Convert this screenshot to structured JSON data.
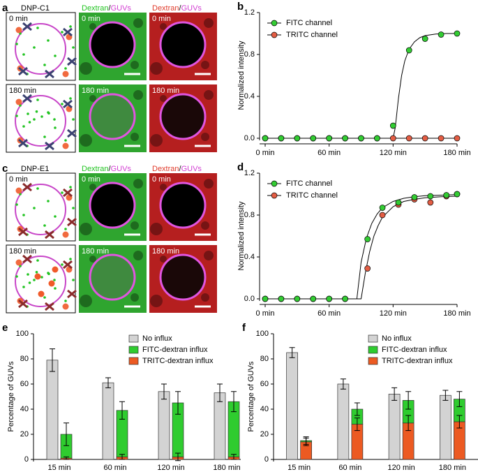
{
  "panels": [
    {
      "label": "a",
      "title": "DNP-C1",
      "headers": [
        [
          "Dextran",
          "/",
          "GUVs"
        ],
        [
          "Dextran",
          "/",
          "GUVs"
        ]
      ],
      "times": [
        "0 min",
        "180 min"
      ]
    },
    {
      "label": "c",
      "title": "DNP-E1",
      "headers": [
        [
          "Dextran",
          "/",
          "GUVs"
        ],
        [
          "Dextran",
          "/",
          "GUVs"
        ]
      ],
      "times": [
        "0 min",
        "180 min"
      ]
    }
  ],
  "chart_data": [
    {
      "type": "line",
      "panel_label": "b",
      "y_label": "Normalized intensity",
      "legend": "top-left",
      "x": [
        0,
        15,
        30,
        45,
        60,
        75,
        90,
        105,
        120,
        135,
        150,
        165,
        180
      ],
      "xlim": [
        0,
        180
      ],
      "xticks": [
        {
          "value": 0,
          "label": "0 min"
        },
        {
          "value": 60,
          "label": "60 min"
        },
        {
          "value": 120,
          "label": "120 min"
        },
        {
          "value": 180,
          "label": "180 min"
        }
      ],
      "ylim": [
        0,
        1.2
      ],
      "yticks": [
        {
          "value": 0,
          "label": "0.0"
        },
        0.4,
        0.8,
        1.2
      ],
      "series": [
        {
          "name": "FITC channel",
          "color": "#33cc33",
          "values": [
            0,
            0,
            0,
            0,
            0,
            0,
            0,
            0,
            0.12,
            0.84,
            0.95,
            0.99,
            1.0
          ],
          "fit": {
            "x": [
              0,
              120,
              122,
              125,
              128,
              131,
              135,
              140,
              145,
              150,
              160,
              170,
              180
            ],
            "values": [
              0,
              0,
              0.1,
              0.38,
              0.6,
              0.74,
              0.85,
              0.92,
              0.96,
              0.98,
              0.995,
              1,
              1
            ]
          }
        },
        {
          "name": "TRITC channel",
          "color": "#e35d44",
          "values": [
            0,
            0,
            0,
            0,
            0,
            0,
            0,
            0,
            0,
            0,
            0,
            0,
            0
          ],
          "fit": {
            "x": [
              0,
              180
            ],
            "values": [
              0,
              0
            ]
          }
        }
      ]
    },
    {
      "type": "line",
      "panel_label": "d",
      "y_label": "Normalized intensity",
      "legend": "top-left",
      "x": [
        0,
        15,
        30,
        45,
        60,
        75,
        96,
        110,
        125,
        140,
        155,
        170,
        180
      ],
      "xlim": [
        0,
        180
      ],
      "xticks": [
        {
          "value": 0,
          "label": "0 min"
        },
        {
          "value": 60,
          "label": "60 min"
        },
        {
          "value": 120,
          "label": "120 min"
        },
        {
          "value": 180,
          "label": "180 min"
        }
      ],
      "ylim": [
        0,
        1.2
      ],
      "yticks": [
        {
          "value": 0,
          "label": "0.0"
        },
        0.4,
        0.8,
        1.2
      ],
      "series": [
        {
          "name": "FITC channel",
          "color": "#33cc33",
          "values": [
            0,
            0,
            0,
            0,
            0,
            0,
            0.57,
            0.87,
            0.92,
            0.97,
            0.98,
            0.99,
            1.0
          ],
          "fit": {
            "x": [
              0,
              86,
              90,
              95,
              100,
              105,
              110,
              120,
              130,
              140,
              150,
              165,
              180
            ],
            "values": [
              0,
              0,
              0.35,
              0.58,
              0.72,
              0.81,
              0.87,
              0.93,
              0.96,
              0.975,
              0.985,
              0.99,
              0.995
            ]
          }
        },
        {
          "name": "TRITC channel",
          "color": "#e35d44",
          "values": [
            0,
            0,
            0,
            0,
            0,
            0,
            0.29,
            0.8,
            0.9,
            0.95,
            0.92,
            0.98,
            1.0
          ],
          "fit": {
            "x": [
              0,
              90,
              94,
              98,
              102,
              106,
              110,
              120,
              130,
              140,
              150,
              165,
              180
            ],
            "values": [
              0,
              0,
              0.25,
              0.45,
              0.6,
              0.7,
              0.78,
              0.88,
              0.93,
              0.95,
              0.965,
              0.975,
              0.98
            ]
          }
        }
      ]
    },
    {
      "type": "bar",
      "panel_label": "e",
      "y_label": "Percentage of GUVs",
      "legend": "top-right",
      "stacked": true,
      "categories": [
        "15 min",
        "60 min",
        "120 min",
        "180 min"
      ],
      "ylim": [
        0,
        100
      ],
      "yticks": [
        0,
        20,
        40,
        60,
        80,
        100
      ],
      "series": [
        {
          "name": "No influx",
          "color": "#d3d3d3",
          "values": [
            79,
            61,
            54,
            53
          ],
          "errors": [
            9,
            4,
            6,
            7
          ]
        },
        {
          "name": "FITC-dextran influx",
          "color": "#2fcc2f",
          "values": [
            19,
            37,
            43,
            44
          ],
          "errors": [
            9,
            7,
            9,
            8
          ]
        },
        {
          "name": "TRITC-dextran influx",
          "color": "#ec5a22",
          "values": [
            1,
            2,
            2,
            2
          ],
          "errors": [
            1,
            2,
            3,
            2
          ]
        }
      ]
    },
    {
      "type": "bar",
      "panel_label": "f",
      "y_label": "Percentage of GUVs",
      "legend": "top-right",
      "stacked": true,
      "categories": [
        "15 min",
        "60 min",
        "120 min",
        "180 min"
      ],
      "ylim": [
        0,
        100
      ],
      "yticks": [
        0,
        20,
        40,
        60,
        80,
        100
      ],
      "series": [
        {
          "name": "No influx",
          "color": "#d3d3d3",
          "values": [
            85,
            60,
            52,
            51
          ],
          "errors": [
            4,
            4,
            5,
            4
          ]
        },
        {
          "name": "FITC-dextran influx",
          "color": "#2fcc2f",
          "values": [
            1,
            12,
            18,
            18
          ],
          "errors": [
            3,
            5,
            7,
            6
          ]
        },
        {
          "name": "TRITC-dextran influx",
          "color": "#ec5a22",
          "values": [
            14,
            28,
            29,
            30
          ],
          "errors": [
            3,
            5,
            6,
            5
          ]
        }
      ]
    }
  ]
}
